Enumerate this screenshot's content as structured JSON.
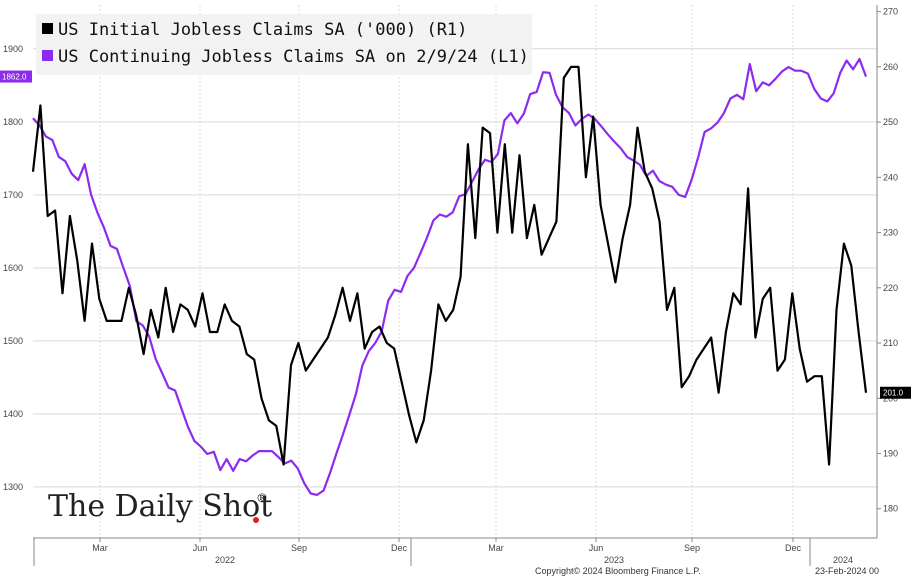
{
  "chart_data": {
    "type": "line",
    "series": [
      {
        "name": "US Initial Jobless Claims SA ('000) (R1)",
        "axis": "right",
        "color": "#000000",
        "last_value_label": "201.0",
        "values": [
          241,
          253,
          233,
          234,
          219,
          233,
          225,
          214,
          228,
          218,
          214,
          214,
          214,
          220,
          215,
          208,
          216,
          211,
          220,
          212,
          217,
          216,
          213,
          219,
          212,
          212,
          217,
          214,
          213,
          208,
          207,
          200,
          196,
          195,
          188,
          206,
          210,
          205,
          207,
          209,
          211,
          215,
          220,
          214,
          219,
          209,
          212,
          213,
          210,
          209,
          203,
          197,
          192,
          196,
          205,
          217,
          214,
          216,
          222,
          246,
          229,
          249,
          248,
          230,
          246,
          230,
          244,
          229,
          235,
          226,
          229,
          232,
          258,
          260,
          260,
          240,
          251,
          235,
          228,
          221,
          229,
          235,
          249,
          241,
          238,
          232,
          216,
          220,
          202,
          204,
          207,
          209,
          211,
          201,
          212,
          219,
          217,
          238,
          211,
          218,
          220,
          205,
          207,
          219,
          209,
          203,
          204,
          204,
          188,
          216,
          228,
          224,
          212,
          201
        ]
      },
      {
        "name": "US Continuing Jobless Claims SA on 2/9/24 (L1)",
        "axis": "left",
        "color": "#8c2bf0",
        "last_value_label": "1862.0",
        "values": [
          1805,
          1795,
          1780,
          1775,
          1752,
          1746,
          1729,
          1720,
          1742,
          1700,
          1675,
          1655,
          1630,
          1626,
          1600,
          1575,
          1527,
          1521,
          1506,
          1475,
          1456,
          1436,
          1432,
          1407,
          1382,
          1363,
          1355,
          1345,
          1348,
          1323,
          1338,
          1322,
          1338,
          1335,
          1343,
          1349,
          1349,
          1349,
          1341,
          1332,
          1336,
          1325,
          1305,
          1291,
          1289,
          1295,
          1319,
          1346,
          1372,
          1399,
          1427,
          1466,
          1486,
          1497,
          1513,
          1555,
          1570,
          1567,
          1589,
          1600,
          1620,
          1641,
          1665,
          1673,
          1670,
          1676,
          1698,
          1701,
          1718,
          1735,
          1748,
          1745,
          1756,
          1802,
          1812,
          1798,
          1811,
          1838,
          1841,
          1868,
          1867,
          1837,
          1820,
          1812,
          1795,
          1804,
          1810,
          1804,
          1794,
          1783,
          1773,
          1764,
          1752,
          1747,
          1741,
          1726,
          1733,
          1719,
          1714,
          1711,
          1700,
          1697,
          1721,
          1751,
          1786,
          1791,
          1799,
          1812,
          1832,
          1837,
          1831,
          1879,
          1842,
          1854,
          1850,
          1859,
          1869,
          1875,
          1870,
          1870,
          1866,
          1845,
          1832,
          1828,
          1839,
          1867,
          1884,
          1872,
          1886,
          1862
        ]
      }
    ],
    "left_axis": {
      "ylim": [
        1230,
        1960
      ],
      "ticks": [
        1300,
        1400,
        1500,
        1600,
        1700,
        1800,
        1900
      ]
    },
    "right_axis": {
      "ylim": [
        174.7,
        271.2
      ],
      "ticks": [
        180,
        190,
        200,
        210,
        220,
        230,
        240,
        250,
        260,
        270
      ]
    },
    "x_month_ticks": [
      "Mar",
      "Jun",
      "Sep",
      "Dec",
      "Mar",
      "Jun",
      "Sep",
      "Dec"
    ],
    "x_year_labels": [
      "2022",
      "2023",
      "2024"
    ],
    "grid": true,
    "legend_position": "top-left"
  },
  "brand": {
    "name": "The Daily Shot",
    "mark": "®"
  },
  "footer": {
    "copyright": "Copyright© 2024 Bloomberg Finance L.P.",
    "date": "23-Feb-2024 00"
  },
  "colors": {
    "initial_claims": "#000000",
    "continuing_claims": "#8c2bf0",
    "grid": "#d9d9d9",
    "brand_dot": "#e02020"
  }
}
